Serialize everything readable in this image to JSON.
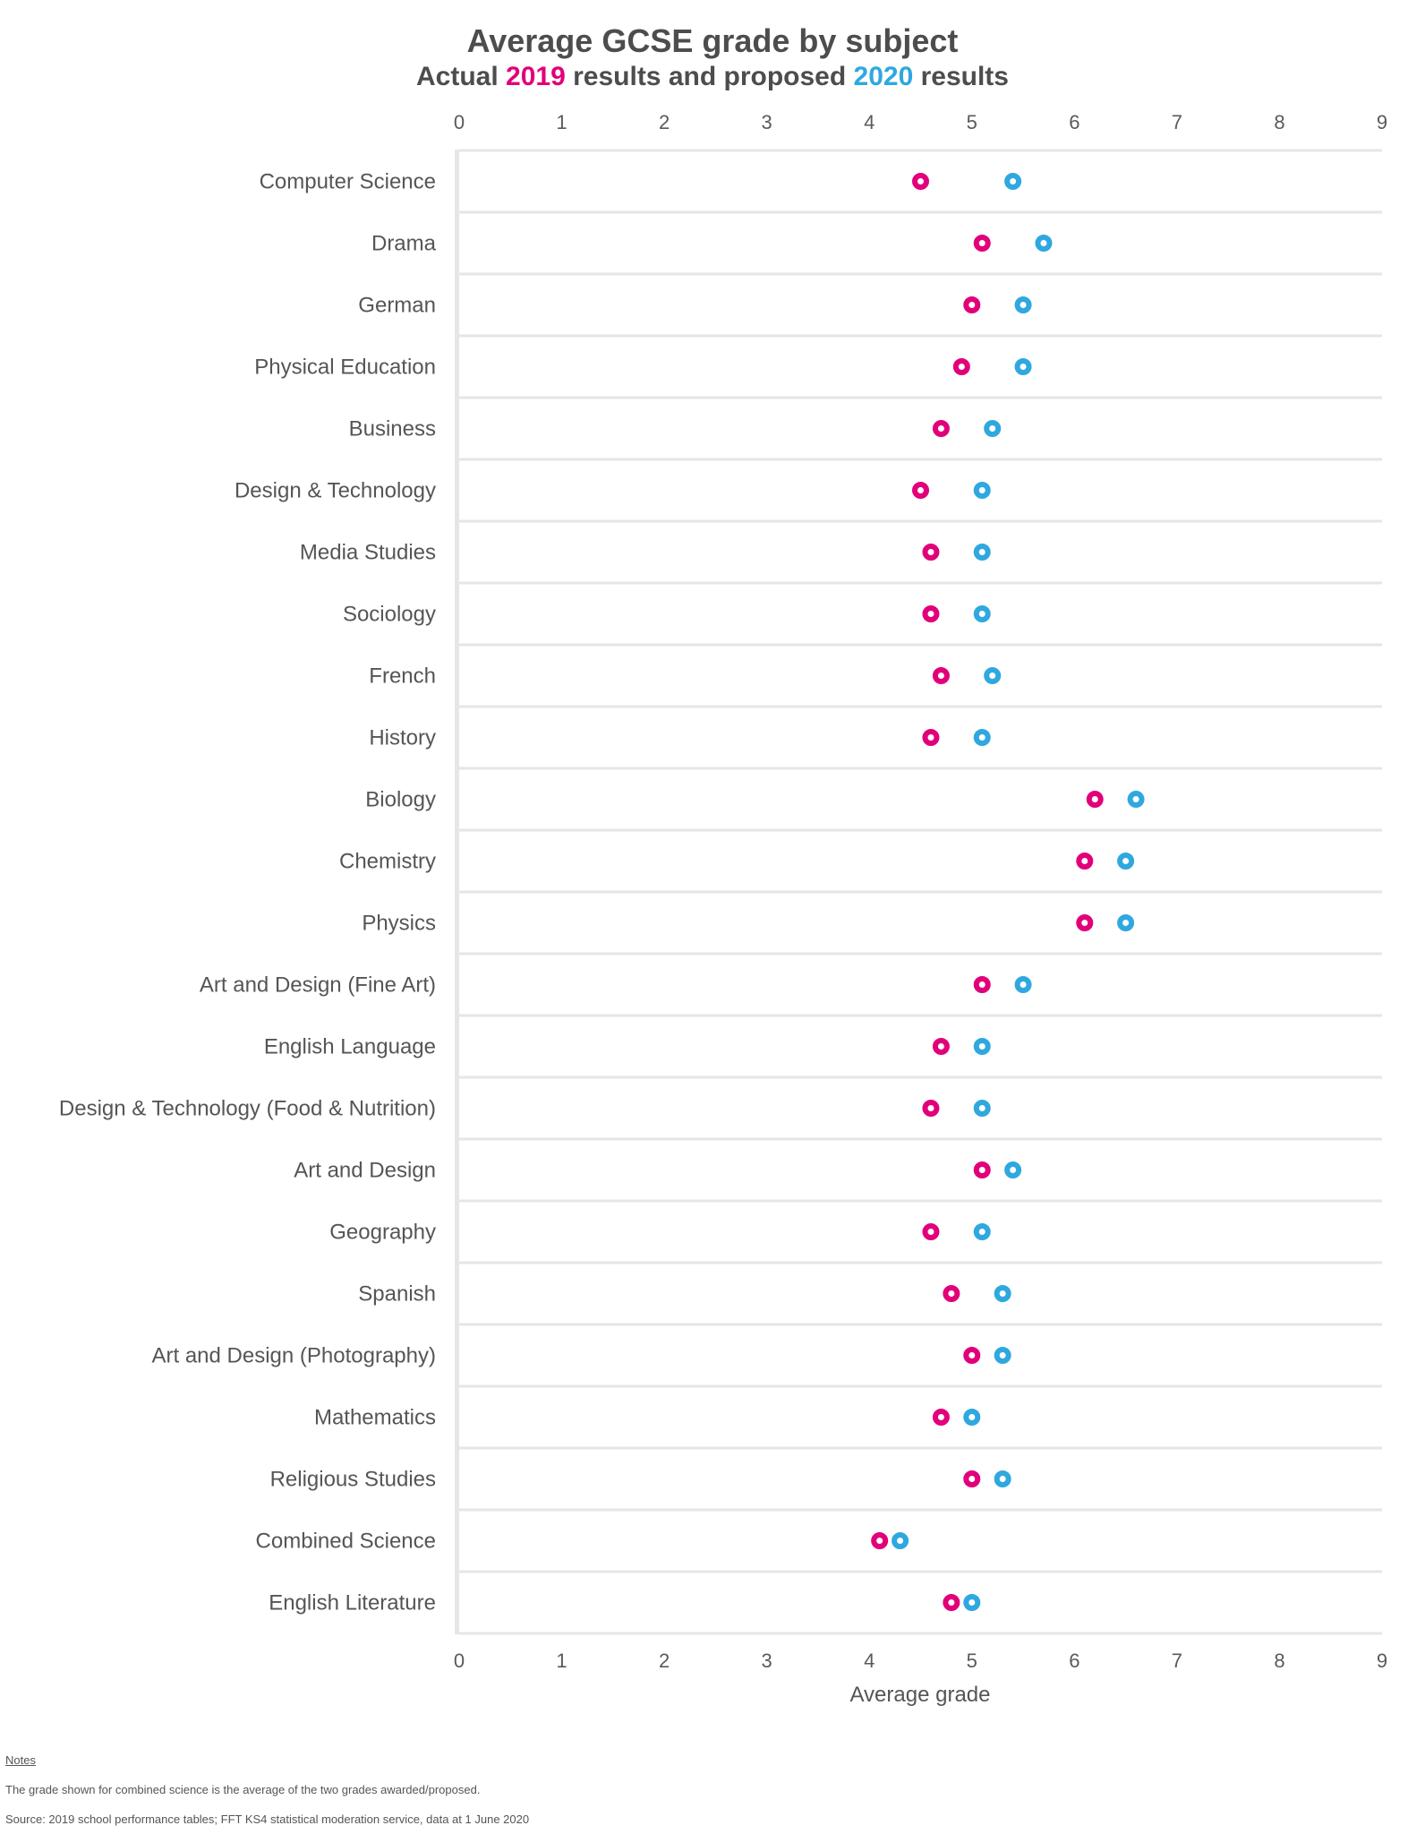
{
  "chart_data": {
    "type": "scatter",
    "orientation": "horizontal-dot-plot",
    "title": "Average GCSE grade by subject",
    "subtitle": {
      "parts": [
        {
          "text": "Actual ",
          "series": null
        },
        {
          "text": "2019",
          "series": "2019"
        },
        {
          "text": " results and proposed ",
          "series": null
        },
        {
          "text": "2020",
          "series": "2020"
        },
        {
          "text": " results",
          "series": null
        }
      ]
    },
    "xlabel": "Average grade",
    "ylabel": "",
    "xlim": [
      0,
      9
    ],
    "xticks": [
      "0",
      "1",
      "2",
      "3",
      "4",
      "5",
      "6",
      "7",
      "8",
      "9"
    ],
    "grid": true,
    "legend": "inline-in-subtitle",
    "categories": [
      "Computer Science",
      "Drama",
      "German",
      "Physical Education",
      "Business",
      "Design & Technology",
      "Media Studies",
      "Sociology",
      "French",
      "History",
      "Biology",
      "Chemistry",
      "Physics",
      "Art and Design (Fine Art)",
      "English Language",
      "Design & Technology (Food & Nutrition)",
      "Art and Design",
      "Geography",
      "Spanish",
      "Art and Design (Photography)",
      "Mathematics",
      "Religious Studies",
      "Combined Science",
      "English Literature"
    ],
    "series": [
      {
        "name": "2019",
        "label": "Actual 2019 results",
        "color": "#e2007a",
        "values": [
          4.5,
          5.1,
          5.0,
          4.9,
          4.7,
          4.5,
          4.6,
          4.6,
          4.7,
          4.6,
          6.2,
          6.1,
          6.1,
          5.1,
          4.7,
          4.6,
          5.1,
          4.6,
          4.8,
          5.0,
          4.7,
          5.0,
          4.1,
          4.8
        ]
      },
      {
        "name": "2020",
        "label": "Proposed 2020 results",
        "color": "#2fa8df",
        "values": [
          5.4,
          5.7,
          5.5,
          5.5,
          5.2,
          5.1,
          5.1,
          5.1,
          5.2,
          5.1,
          6.6,
          6.5,
          6.5,
          5.5,
          5.1,
          5.1,
          5.4,
          5.1,
          5.3,
          5.3,
          5.0,
          5.3,
          4.3,
          5.0
        ]
      }
    ]
  },
  "notes": {
    "heading": "Notes",
    "line1": "The grade shown for combined science is the average of the two grades awarded/proposed.",
    "source": "Source: 2019 school performance tables; FFT KS4 statistical moderation service, data at 1 June 2020"
  },
  "colors": {
    "text": "#4d4d4d",
    "grid": "#e6e6e6"
  }
}
